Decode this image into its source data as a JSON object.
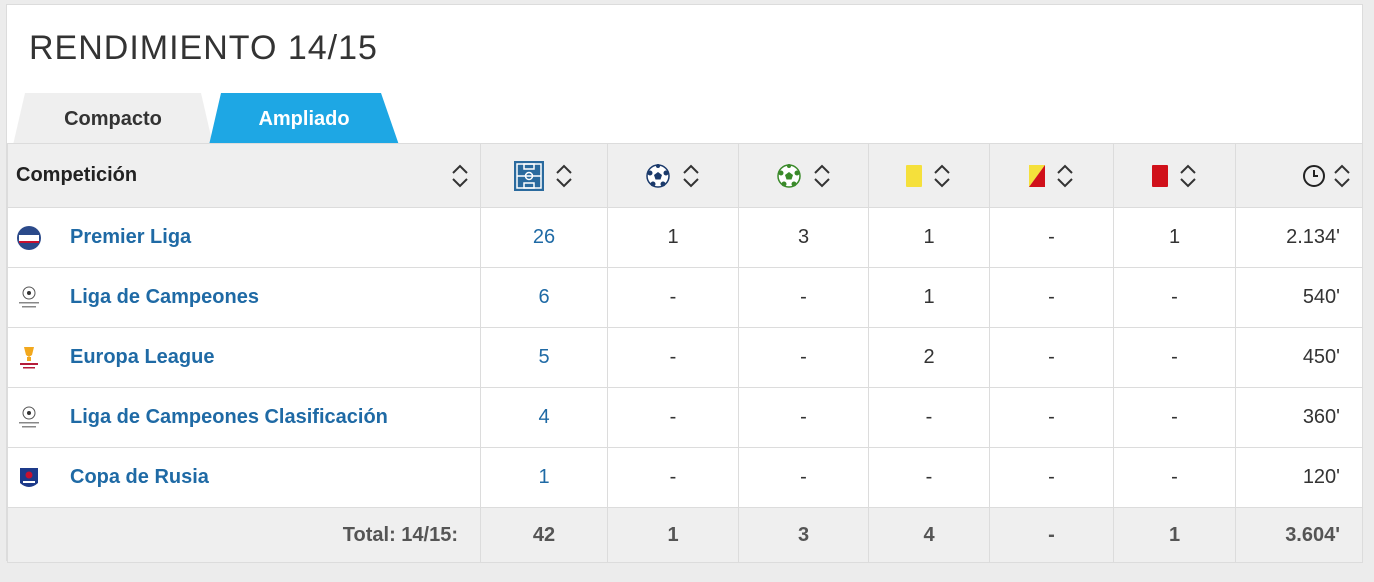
{
  "title": "RENDIMIENTO 14/15",
  "tabs": {
    "compact": "Compacto",
    "ampliado": "Ampliado"
  },
  "header": {
    "competition": "Competición"
  },
  "icons": {
    "played": "pitch-icon",
    "goals": "ball-icon",
    "assists": "ball-assist-icon",
    "yellow": "yellow-card-icon",
    "second_yellow": "second-yellow-card-icon",
    "red": "red-card-icon",
    "minutes": "clock-icon"
  },
  "colors": {
    "accent": "#1ea7e4",
    "link": "#1f6aa5",
    "yellow": "#f5e03b",
    "red": "#d0101a"
  },
  "rows": [
    {
      "name": "Premier Liga",
      "played": "26",
      "goals": "1",
      "assists": "3",
      "yellow": "1",
      "second_yellow": "-",
      "red": "1",
      "minutes": "2.134'"
    },
    {
      "name": "Liga de Campeones",
      "played": "6",
      "goals": "-",
      "assists": "-",
      "yellow": "1",
      "second_yellow": "-",
      "red": "-",
      "minutes": "540'"
    },
    {
      "name": "Europa League",
      "played": "5",
      "goals": "-",
      "assists": "-",
      "yellow": "2",
      "second_yellow": "-",
      "red": "-",
      "minutes": "450'"
    },
    {
      "name": "Liga de Campeones Clasificación",
      "played": "4",
      "goals": "-",
      "assists": "-",
      "yellow": "-",
      "second_yellow": "-",
      "red": "-",
      "minutes": "360'"
    },
    {
      "name": "Copa de Rusia",
      "played": "1",
      "goals": "-",
      "assists": "-",
      "yellow": "-",
      "second_yellow": "-",
      "red": "-",
      "minutes": "120'"
    }
  ],
  "total": {
    "label": "Total: 14/15:",
    "played": "42",
    "goals": "1",
    "assists": "3",
    "yellow": "4",
    "second_yellow": "-",
    "red": "1",
    "minutes": "3.604'"
  }
}
